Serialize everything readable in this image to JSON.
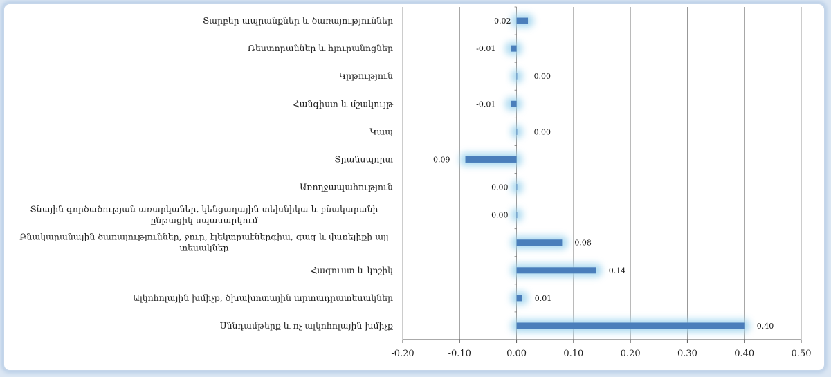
{
  "chart_data": {
    "type": "bar",
    "orientation": "horizontal",
    "categories": [
      "Տարբեր ապրանքներ և ծառայություններ",
      "Ռեստորաններ և հյուրանոցներ",
      "Կրթություն",
      "Հանգիստ և մշակույթ",
      "Կապ",
      "Տրանսպորտ",
      "Առողջապահություն",
      [
        "Տնային գործածության առարկաներ, կենցաղային տեխնիկա և բնակարանի",
        "ընթացիկ սպասարկում"
      ],
      [
        "Բնակարանային ծառայություններ, ջուր, էլեկտրաէներգիա, գազ և վառելիքի այլ",
        "տեսակներ"
      ],
      "Հագուստ և կոշիկ",
      "Ալկոհոլային խմիչք, ծխախոտային արտադրատեսակներ",
      "Սննդամթերք և ոչ ալկոհոլային խմիչք"
    ],
    "values": [
      0.02,
      -0.01,
      0.0,
      -0.01,
      0.0,
      -0.09,
      0.0,
      0.0,
      0.08,
      0.14,
      0.01,
      0.4
    ],
    "value_labels": [
      "0.02",
      "-0.01",
      "0.00",
      "-0.01",
      "0.00",
      "-0.09",
      "0.00",
      "0.00",
      "0.08",
      "0.14",
      "0.01",
      "0.40"
    ],
    "xlim": [
      -0.2,
      0.5
    ],
    "x_ticks": [
      "-0.20",
      "-0.10",
      "0.00",
      "0.10",
      "0.20",
      "0.30",
      "0.40",
      "0.50"
    ],
    "grid": true,
    "legend": "none",
    "colors": {
      "bar": "#4a7ebb",
      "glow": "#9fd4ee",
      "grid": "#7f7f7f",
      "frame": "#c5d6ea"
    }
  }
}
